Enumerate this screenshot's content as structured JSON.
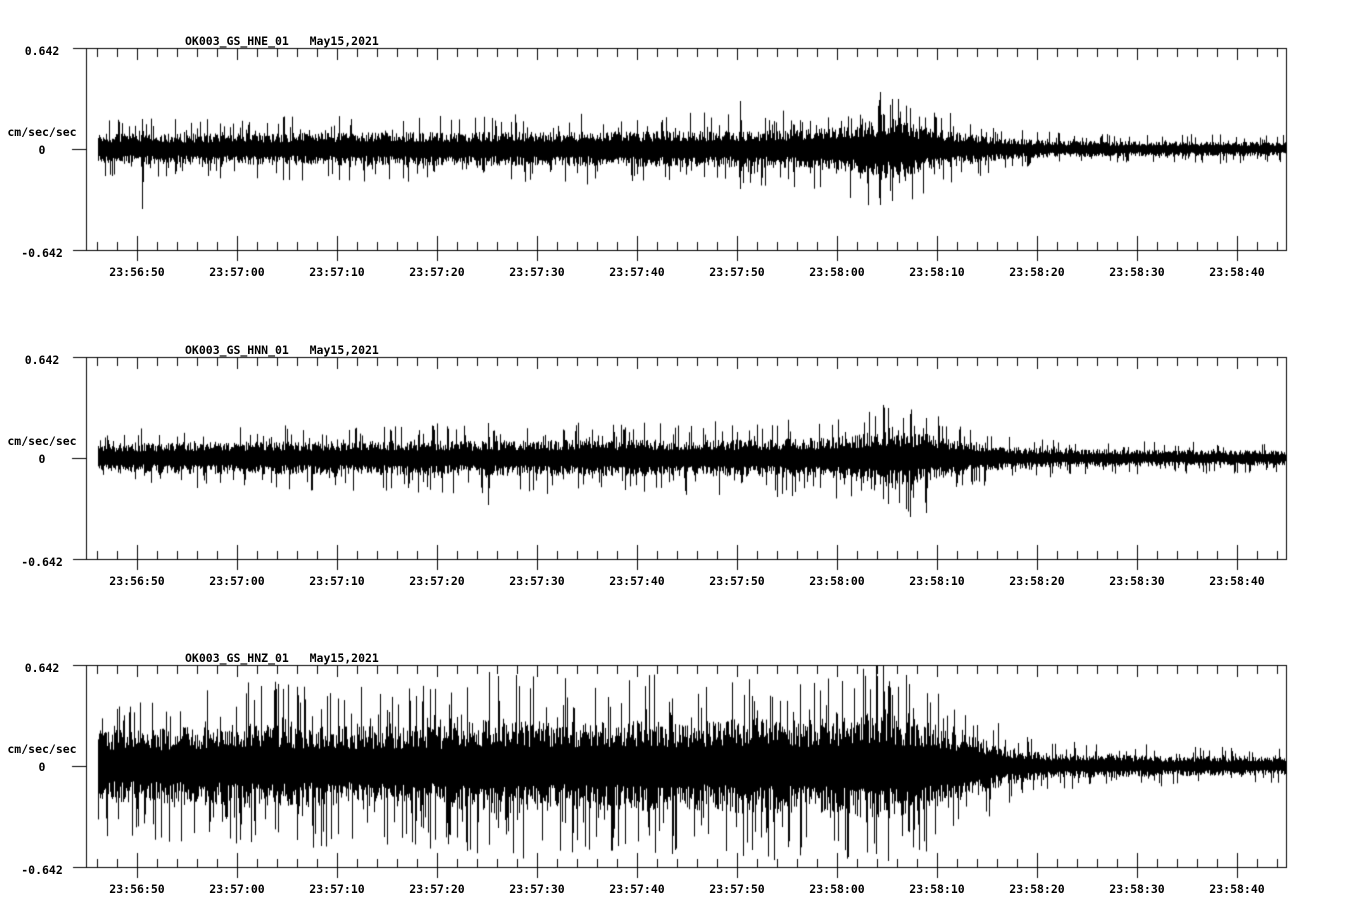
{
  "page": {
    "background": "#ffffff",
    "trace_color": "#000000"
  },
  "chart_data": [
    {
      "type": "line",
      "kind": "seismogram-trace",
      "title": "OK003_GS_HNE_01   May15,2021",
      "station_channel": "OK003_GS_HNE_01",
      "date": "May15,2021",
      "ylabel": "cm/sec/sec",
      "yticks": [
        "0.642",
        "0",
        "-0.642"
      ],
      "ylim": [
        -0.642,
        0.642
      ],
      "xticks": [
        "23:56:50",
        "23:57:00",
        "23:57:10",
        "23:57:20",
        "23:57:30",
        "23:57:40",
        "23:57:50",
        "23:58:00",
        "23:58:10",
        "23:58:20",
        "23:58:30",
        "23:58:40"
      ],
      "x_major_interval_sec": 10,
      "x_minor_interval_sec": 2,
      "seed": 11,
      "spike_prob": 0.12,
      "envelope": [
        [
          0.01,
          14
        ],
        [
          0.2,
          15
        ],
        [
          0.4,
          16
        ],
        [
          0.55,
          17
        ],
        [
          0.6,
          18
        ],
        [
          0.625,
          20
        ],
        [
          0.645,
          24
        ],
        [
          0.662,
          28
        ],
        [
          0.68,
          26
        ],
        [
          0.7,
          20
        ],
        [
          0.73,
          15
        ],
        [
          0.755,
          11
        ],
        [
          0.78,
          9
        ],
        [
          0.82,
          7.5
        ],
        [
          0.9,
          7
        ],
        [
          1.0,
          6.5
        ]
      ],
      "features": [
        {
          "f": 0.047,
          "up": 30,
          "dn": 60
        },
        {
          "f": 0.545,
          "up": 48,
          "dn": 40
        },
        {
          "f": 0.662,
          "up": 57,
          "dn": 56
        },
        {
          "f": 0.672,
          "up": 50,
          "dn": 52
        }
      ]
    },
    {
      "type": "line",
      "kind": "seismogram-trace",
      "title": "OK003_GS_HNN_01   May15,2021",
      "station_channel": "OK003_GS_HNN_01",
      "date": "May15,2021",
      "ylabel": "cm/sec/sec",
      "yticks": [
        "0.642",
        "0",
        "-0.642"
      ],
      "ylim": [
        -0.642,
        0.642
      ],
      "xticks": [
        "23:56:50",
        "23:57:00",
        "23:57:10",
        "23:57:20",
        "23:57:30",
        "23:57:40",
        "23:57:50",
        "23:58:00",
        "23:58:10",
        "23:58:20",
        "23:58:30",
        "23:58:40"
      ],
      "x_major_interval_sec": 10,
      "x_minor_interval_sec": 2,
      "seed": 22,
      "spike_prob": 0.12,
      "envelope": [
        [
          0.01,
          14
        ],
        [
          0.2,
          15.5
        ],
        [
          0.4,
          16.5
        ],
        [
          0.55,
          17
        ],
        [
          0.62,
          19
        ],
        [
          0.648,
          23
        ],
        [
          0.668,
          26
        ],
        [
          0.69,
          24
        ],
        [
          0.715,
          18
        ],
        [
          0.745,
          13
        ],
        [
          0.775,
          10
        ],
        [
          0.81,
          8.5
        ],
        [
          0.9,
          7.5
        ],
        [
          1.0,
          7
        ]
      ],
      "features": [
        {
          "f": 0.335,
          "up": 35,
          "dn": 47
        },
        {
          "f": 0.668,
          "up": 50,
          "dn": 46
        },
        {
          "f": 0.687,
          "up": 44,
          "dn": 59
        },
        {
          "f": 0.7,
          "up": 40,
          "dn": 55
        }
      ]
    },
    {
      "type": "line",
      "kind": "seismogram-trace",
      "title": "OK003_GS_HNZ_01   May15,2021",
      "station_channel": "OK003_GS_HNZ_01",
      "date": "May15,2021",
      "ylabel": "cm/sec/sec",
      "yticks": [
        "0.642",
        "0",
        "-0.642"
      ],
      "ylim": [
        -0.642,
        0.642
      ],
      "xticks": [
        "23:56:50",
        "23:57:00",
        "23:57:10",
        "23:57:20",
        "23:57:30",
        "23:57:40",
        "23:57:50",
        "23:58:00",
        "23:58:10",
        "23:58:20",
        "23:58:30",
        "23:58:40"
      ],
      "x_major_interval_sec": 10,
      "x_minor_interval_sec": 2,
      "seed": 33,
      "spike_prob": 0.17,
      "envelope": [
        [
          0.01,
          33
        ],
        [
          0.1,
          36
        ],
        [
          0.145,
          39
        ],
        [
          0.22,
          36
        ],
        [
          0.3,
          38
        ],
        [
          0.343,
          44
        ],
        [
          0.4,
          40
        ],
        [
          0.47,
          42
        ],
        [
          0.52,
          41
        ],
        [
          0.55,
          44
        ],
        [
          0.6,
          42
        ],
        [
          0.63,
          45
        ],
        [
          0.658,
          50
        ],
        [
          0.685,
          44
        ],
        [
          0.715,
          36
        ],
        [
          0.74,
          28
        ],
        [
          0.765,
          18
        ],
        [
          0.79,
          13
        ],
        [
          0.83,
          11
        ],
        [
          0.9,
          9.5
        ],
        [
          1.0,
          8.5
        ]
      ],
      "features": [
        {
          "f": 0.14,
          "up": 66,
          "dn": 55
        },
        {
          "f": 0.343,
          "up": 90,
          "dn": 62
        },
        {
          "f": 0.555,
          "up": 70,
          "dn": 84
        },
        {
          "f": 0.658,
          "up": 100,
          "dn": 88
        },
        {
          "f": 0.668,
          "up": 80,
          "dn": 95
        }
      ]
    }
  ]
}
